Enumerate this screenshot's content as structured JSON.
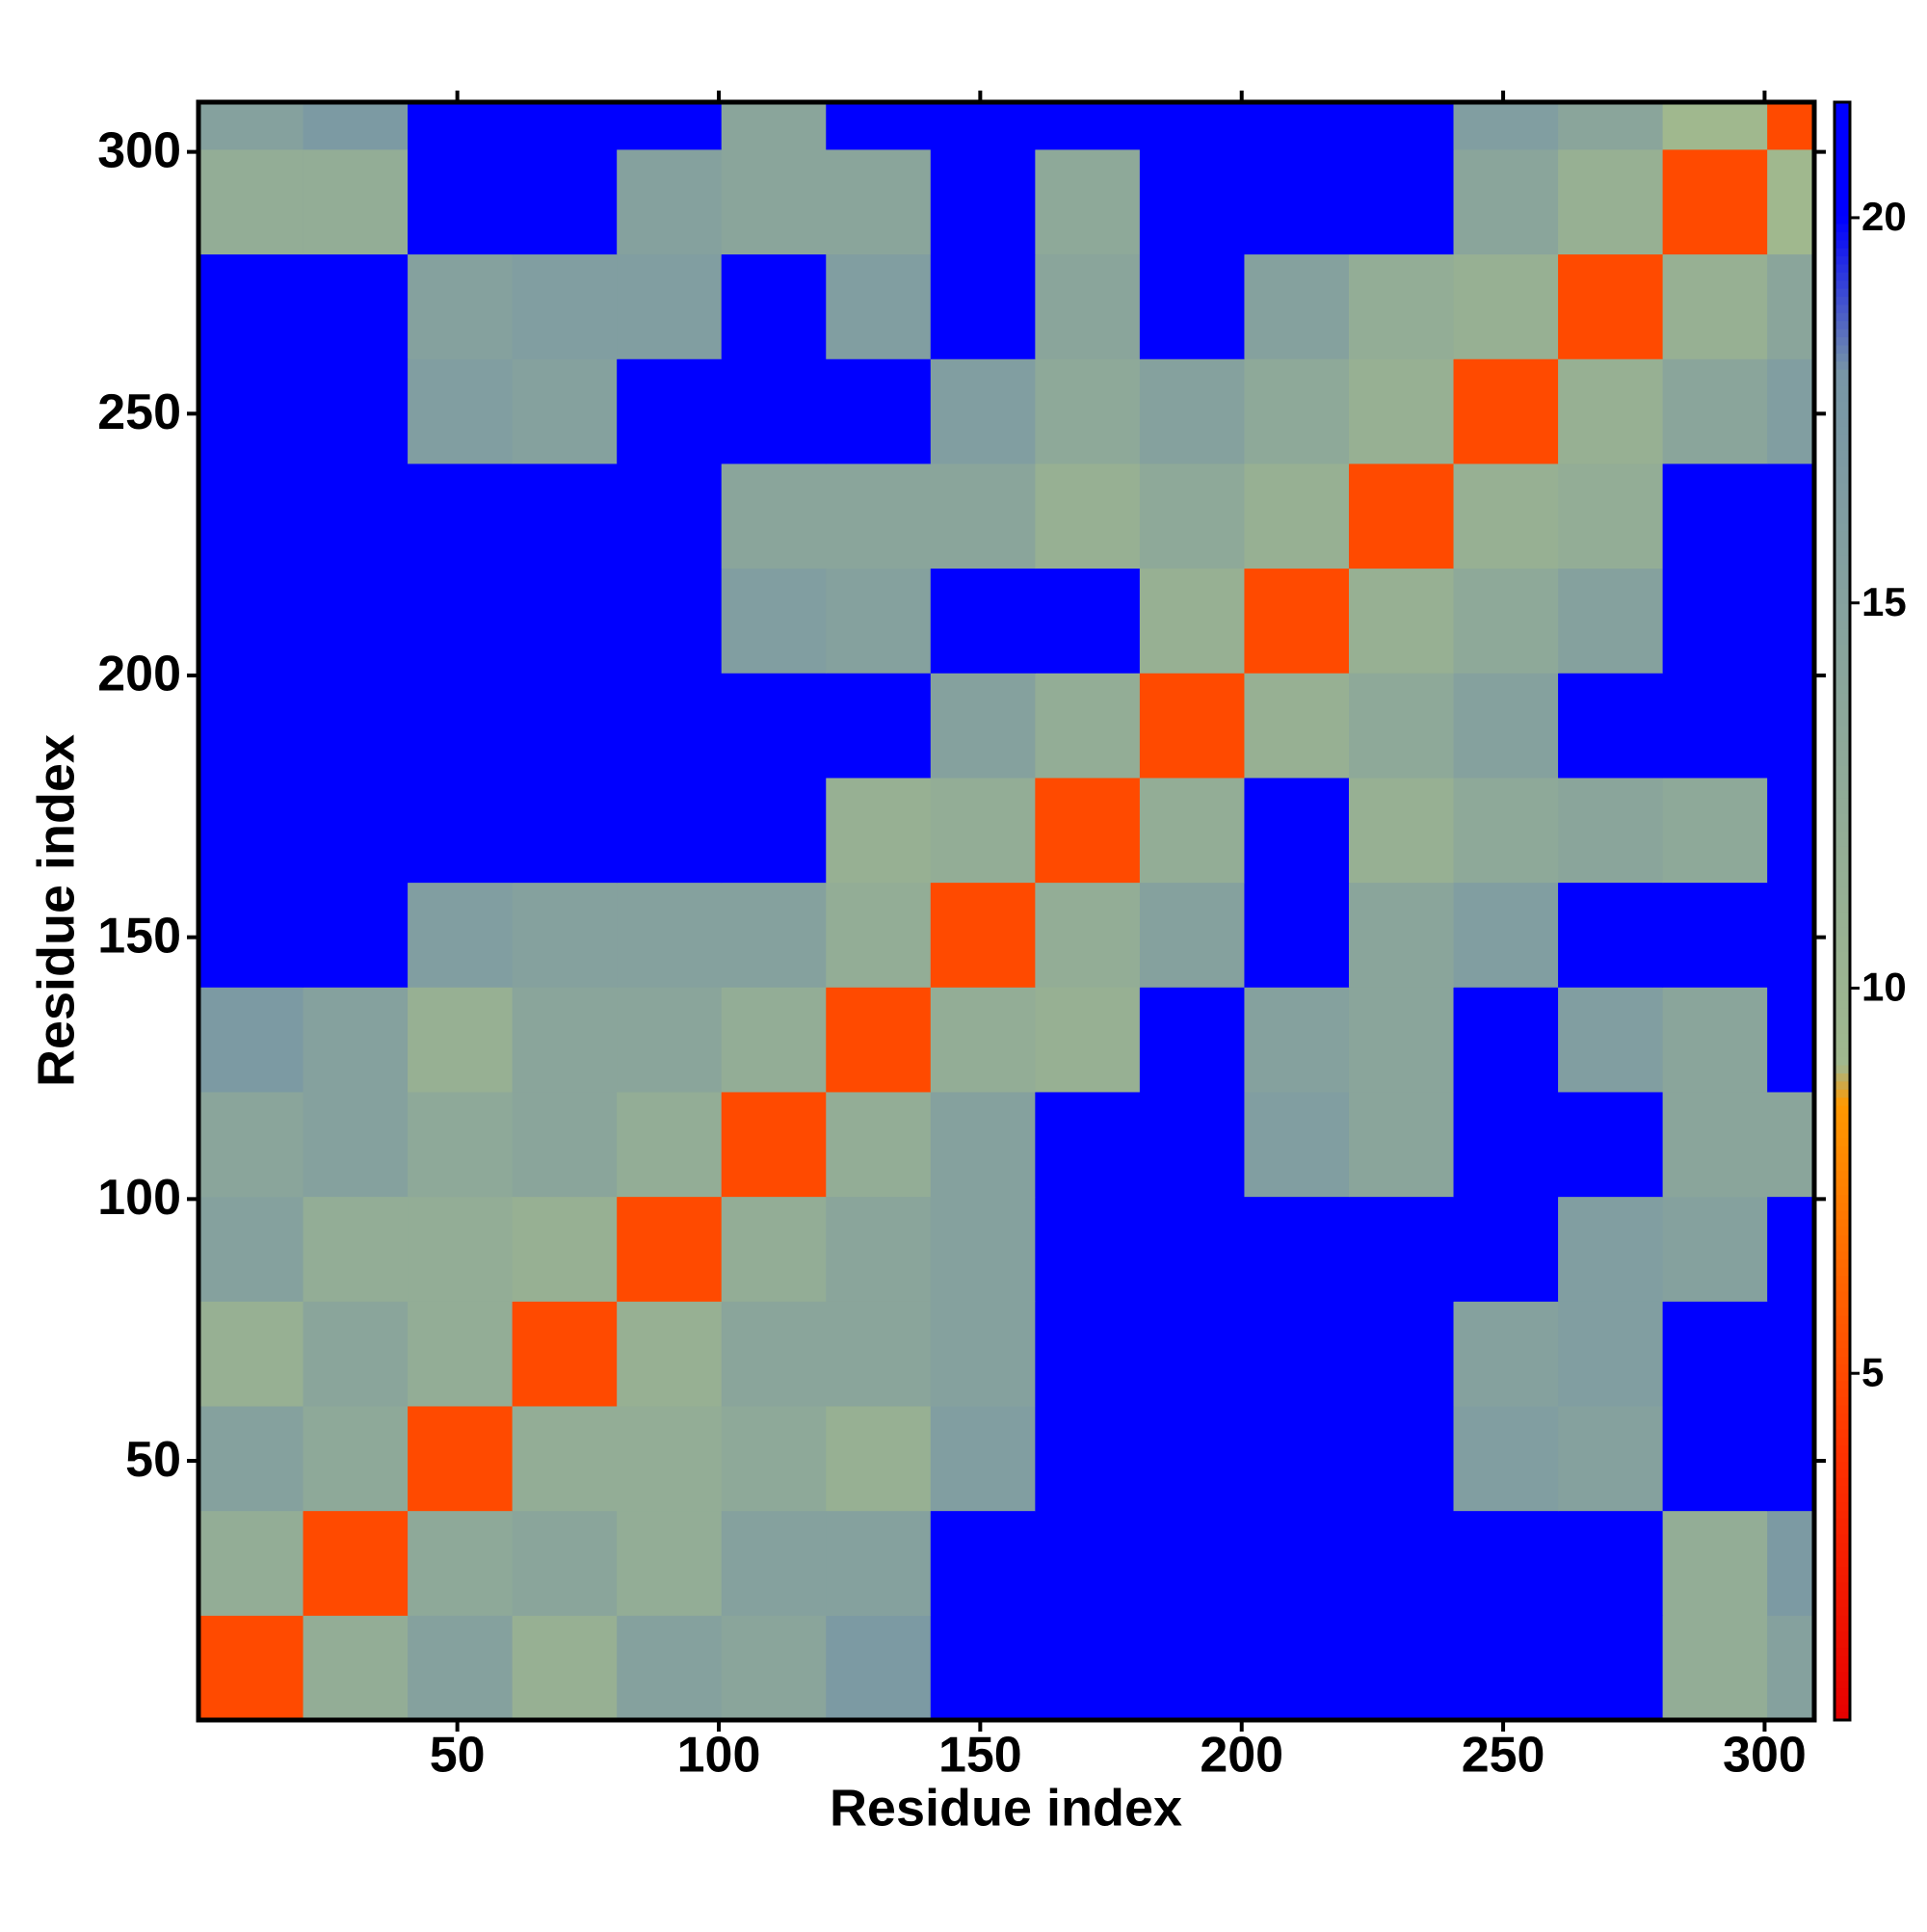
{
  "chart_data": {
    "type": "heatmap",
    "xlabel": "Residue index",
    "ylabel": "Residue index",
    "xbins": [
      0.5,
      20.5,
      40.5,
      60.5,
      80.5,
      100.5,
      120.5,
      140.5,
      160.5,
      180.5,
      200.5,
      220.5,
      240.5,
      260.5,
      280.5,
      300.5,
      309.5
    ],
    "ybins": [
      0.5,
      20.5,
      40.5,
      60.5,
      80.5,
      100.5,
      120.5,
      140.5,
      160.5,
      180.5,
      200.5,
      220.5,
      240.5,
      260.5,
      280.5,
      300.5,
      309.5
    ],
    "xlim": [
      0.5,
      309.5
    ],
    "ylim": [
      0.5,
      309.5
    ],
    "xticks": [
      50,
      100,
      150,
      200,
      250,
      300
    ],
    "yticks": [
      50,
      100,
      150,
      200,
      250,
      300
    ],
    "z": [
      [
        5,
        12,
        15,
        11,
        15,
        14,
        17,
        21,
        21,
        21,
        21,
        21,
        21,
        21,
        12,
        15
      ],
      [
        12,
        5,
        13,
        14,
        12,
        15,
        15,
        21,
        21,
        21,
        21,
        21,
        21,
        21,
        12,
        17
      ],
      [
        15,
        13,
        5,
        12,
        12,
        13,
        11,
        16,
        21,
        21,
        21,
        21,
        16,
        15,
        21,
        21
      ],
      [
        11,
        14,
        12,
        5,
        11,
        14,
        14,
        15,
        21,
        21,
        21,
        21,
        15,
        16,
        21,
        21
      ],
      [
        15,
        12,
        12,
        11,
        5,
        12,
        14,
        15,
        21,
        21,
        21,
        21,
        21,
        16,
        15,
        21
      ],
      [
        14,
        15,
        13,
        14,
        12,
        5,
        12,
        15,
        21,
        21,
        16,
        14,
        21,
        21,
        14,
        14
      ],
      [
        17,
        15,
        11,
        14,
        14,
        12,
        5,
        12,
        11,
        21,
        15,
        14,
        21,
        16,
        14,
        21
      ],
      [
        21,
        21,
        16,
        15,
        15,
        15,
        12,
        5,
        12,
        15,
        21,
        14,
        16,
        21,
        21,
        21
      ],
      [
        21,
        21,
        21,
        21,
        21,
        21,
        11,
        12,
        5,
        12,
        21,
        11,
        13,
        14,
        13,
        21
      ],
      [
        21,
        21,
        21,
        21,
        21,
        21,
        21,
        15,
        12,
        5,
        11,
        13,
        15,
        21,
        21,
        21
      ],
      [
        21,
        21,
        21,
        21,
        21,
        16,
        15,
        21,
        21,
        11,
        5,
        11,
        13,
        15,
        21,
        21
      ],
      [
        21,
        21,
        21,
        21,
        21,
        14,
        14,
        14,
        11,
        13,
        11,
        5,
        11,
        12,
        21,
        21
      ],
      [
        21,
        21,
        16,
        15,
        21,
        21,
        21,
        16,
        13,
        15,
        13,
        11,
        5,
        11,
        14,
        16
      ],
      [
        21,
        21,
        15,
        16,
        16,
        21,
        16,
        21,
        14,
        21,
        15,
        12,
        11,
        5,
        11,
        14
      ],
      [
        12,
        12,
        21,
        21,
        15,
        14,
        14,
        21,
        13,
        21,
        21,
        21,
        14,
        11,
        5,
        9
      ],
      [
        15,
        17,
        21,
        21,
        21,
        14,
        21,
        21,
        21,
        21,
        21,
        21,
        16,
        14,
        9,
        5
      ]
    ],
    "clim": [
      0.5,
      21.5
    ],
    "colorbar_ticks": [
      5,
      10,
      15,
      20
    ],
    "colorscale": [
      {
        "value": 0.5,
        "color": "#e60000"
      },
      {
        "value": 4,
        "color": "#ff3300"
      },
      {
        "value": 8.5,
        "color": "#ff9900"
      },
      {
        "value": 9,
        "color": "#a0b88e"
      },
      {
        "value": 18,
        "color": "#7896a6"
      },
      {
        "value": 20,
        "color": "#0000ff"
      }
    ]
  }
}
